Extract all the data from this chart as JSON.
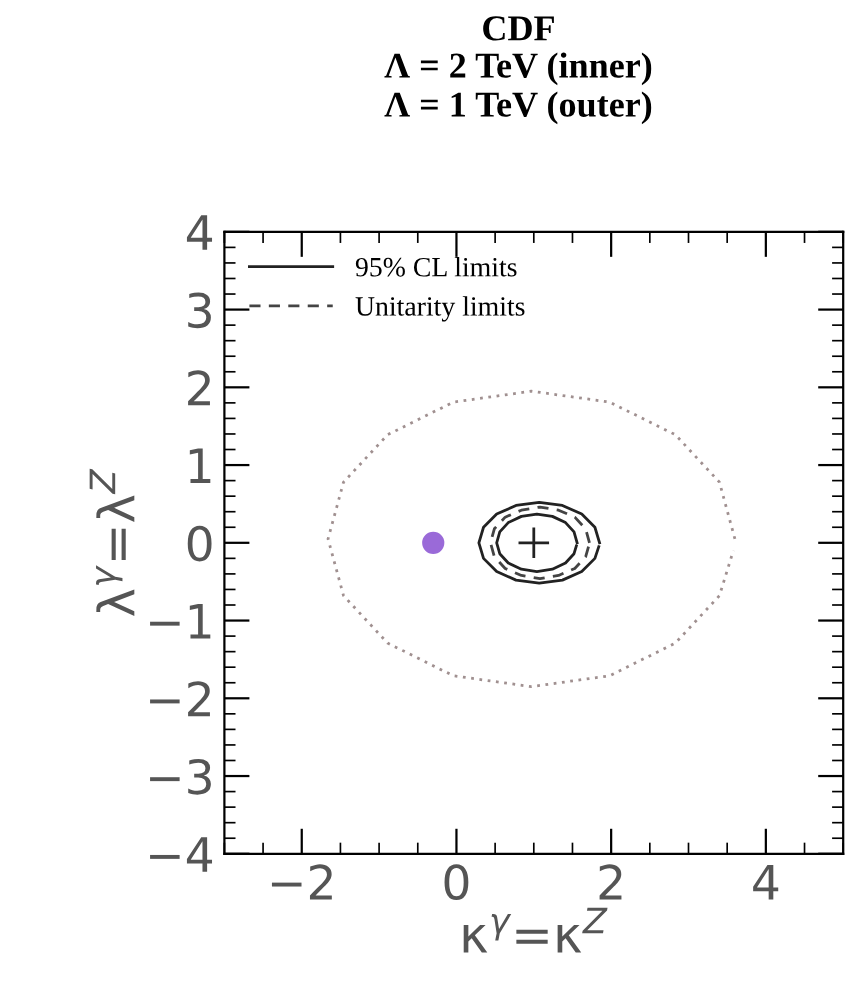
{
  "chart_data": {
    "type": "line",
    "title": "CDF",
    "subtitle": "Λ = 2 TeV (inner)\nΛ = 1 TeV (outer)",
    "xlabel": "κ$^{γ}$=κ$^{Z}$",
    "ylabel": "λ$^{γ}$=λ$^{Z}$",
    "xlim": [
      -3,
      5
    ],
    "ylim": [
      -4,
      4
    ],
    "xticks": [
      {
        "value": -2,
        "label": "−2"
      },
      0,
      2,
      4
    ],
    "yticks": [
      {
        "value": -4,
        "label": "−4"
      },
      {
        "value": -3,
        "label": "−3"
      },
      {
        "value": -2,
        "label": "−2"
      },
      {
        "value": -1,
        "label": "−1"
      },
      0,
      1,
      2,
      3,
      4
    ],
    "grid": false,
    "legend": "top left",
    "series": [
      {
        "name": "95% CL limits",
        "color": "#222222",
        "line_style": "solid",
        "x": [
          1.85,
          1.79,
          1.62,
          1.37,
          1.07,
          0.77,
          0.52,
          0.35,
          0.29,
          0.35,
          0.52,
          0.77,
          1.07,
          1.37,
          1.62,
          1.79,
          1.84
        ],
        "values": [
          0,
          0.2,
          0.37,
          0.48,
          0.52,
          0.48,
          0.37,
          0.2,
          0,
          -0.2,
          -0.37,
          -0.48,
          -0.52,
          -0.48,
          -0.37,
          -0.2,
          -0.05
        ]
      },
      {
        "color": "#222222",
        "line_style": "solid",
        "x": [
          1.56,
          1.52,
          1.41,
          1.24,
          1.04,
          0.84,
          0.67,
          0.56,
          0.52,
          0.56,
          0.67,
          0.84,
          1.04,
          1.24,
          1.41,
          1.52,
          1.55
        ],
        "values": [
          0,
          0.14,
          0.26,
          0.34,
          0.37,
          0.34,
          0.26,
          0.14,
          0,
          -0.14,
          -0.26,
          -0.34,
          -0.37,
          -0.34,
          -0.26,
          -0.14,
          -0.04
        ]
      },
      {
        "name": "Unitarity limits",
        "color": "#444444",
        "line_style": "dashed",
        "x": [
          1.72,
          1.67,
          1.53,
          1.32,
          1.08,
          0.84,
          0.63,
          0.49,
          0.44,
          0.49,
          0.63,
          0.84,
          1.08,
          1.32,
          1.53,
          1.67,
          1.71
        ],
        "values": [
          0,
          0.18,
          0.33,
          0.42,
          0.46,
          0.42,
          0.33,
          0.18,
          0,
          -0.18,
          -0.33,
          -0.42,
          -0.46,
          -0.42,
          -0.33,
          -0.18,
          -0.04
        ]
      },
      {
        "color": "#a09090",
        "line_style": "dotted",
        "x": [
          3.6,
          3.4,
          2.83,
          1.98,
          0.97,
          -0.04,
          -0.89,
          -1.46,
          -1.66,
          -1.46,
          -0.89,
          -0.04,
          0.97,
          1.98,
          2.83,
          3.4,
          3.58
        ],
        "values": [
          0.05,
          0.78,
          1.39,
          1.81,
          1.95,
          1.81,
          1.39,
          0.78,
          0.05,
          -0.68,
          -1.29,
          -1.71,
          -1.85,
          -1.71,
          -1.29,
          -0.68,
          -0.1
        ]
      },
      {
        "type": "scatter",
        "marker": "cross",
        "color": "#222222",
        "x": [
          1
        ],
        "values": [
          0
        ]
      },
      {
        "type": "scatter",
        "marker": "circle",
        "color": "#9a6ad8",
        "x": [
          -0.3
        ],
        "values": [
          0
        ]
      }
    ]
  }
}
